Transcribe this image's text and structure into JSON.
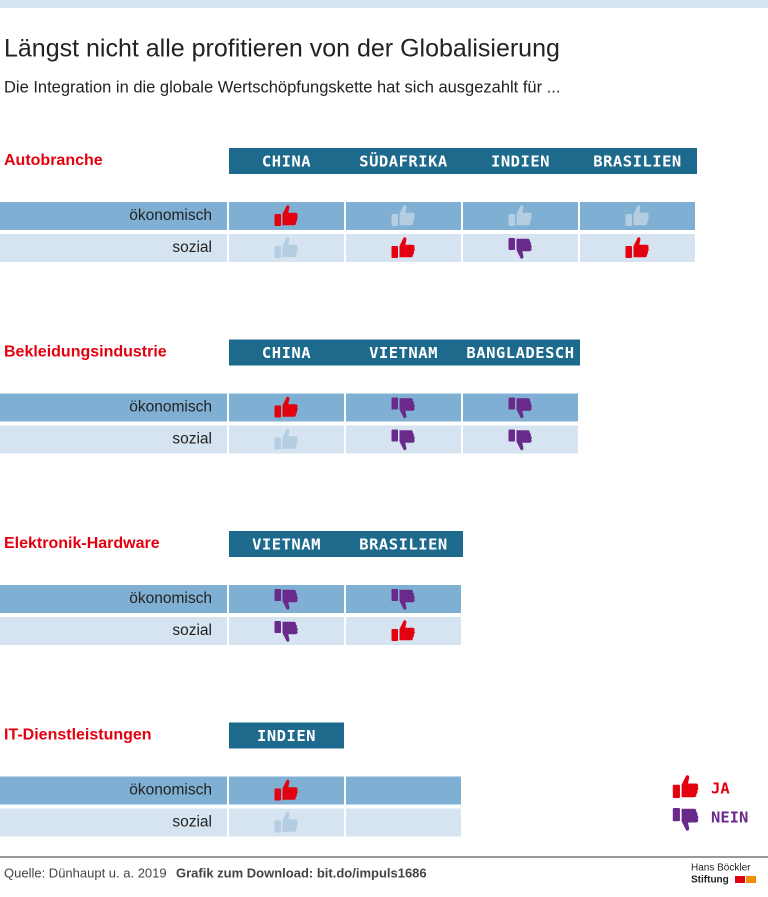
{
  "header": {
    "title": "Längst nicht alle profitieren von der Globalisierung",
    "subtitle": "Die Integration in die globale Wertschöpfungskette hat sich ausgezahlt für ..."
  },
  "sections": [
    {
      "label": "Autobranche",
      "countries": [
        "CHINA",
        "SÜDAFRIKA",
        "INDIEN",
        "BRASILIEN"
      ],
      "rows": [
        {
          "label": "ökonomisch",
          "cells": [
            "ja",
            "neutral",
            "neutral",
            "neutral"
          ]
        },
        {
          "label": "sozial",
          "cells": [
            "neutral",
            "ja",
            "nein",
            "ja"
          ]
        }
      ]
    },
    {
      "label": "Bekleidungsindustrie",
      "countries": [
        "CHINA",
        "VIETNAM",
        "BANGLADESCH"
      ],
      "rows": [
        {
          "label": "ökonomisch",
          "cells": [
            "ja",
            "nein",
            "nein"
          ]
        },
        {
          "label": "sozial",
          "cells": [
            "neutral",
            "nein",
            "nein"
          ]
        }
      ]
    },
    {
      "label": "Elektronik-Hardware",
      "countries": [
        "VIETNAM",
        "BRASILIEN"
      ],
      "rows": [
        {
          "label": "ökonomisch",
          "cells": [
            "nein",
            "nein"
          ]
        },
        {
          "label": "sozial",
          "cells": [
            "nein",
            "ja"
          ]
        }
      ]
    },
    {
      "label": "IT-Dienstleistungen",
      "countries": [
        "INDIEN"
      ],
      "rows": [
        {
          "label": "ökonomisch",
          "cells": [
            "ja",
            null
          ]
        },
        {
          "label": "sozial",
          "cells": [
            "neutral",
            null
          ]
        }
      ]
    }
  ],
  "legend": {
    "ja": "JA",
    "nein": "NEIN"
  },
  "footer": {
    "source": "Quelle: Dünhaupt u. a. 2019",
    "download": "Grafik zum Download: bit.do/impuls1686",
    "logo_line1": "Hans Böckler",
    "logo_line2": "Stiftung"
  }
}
